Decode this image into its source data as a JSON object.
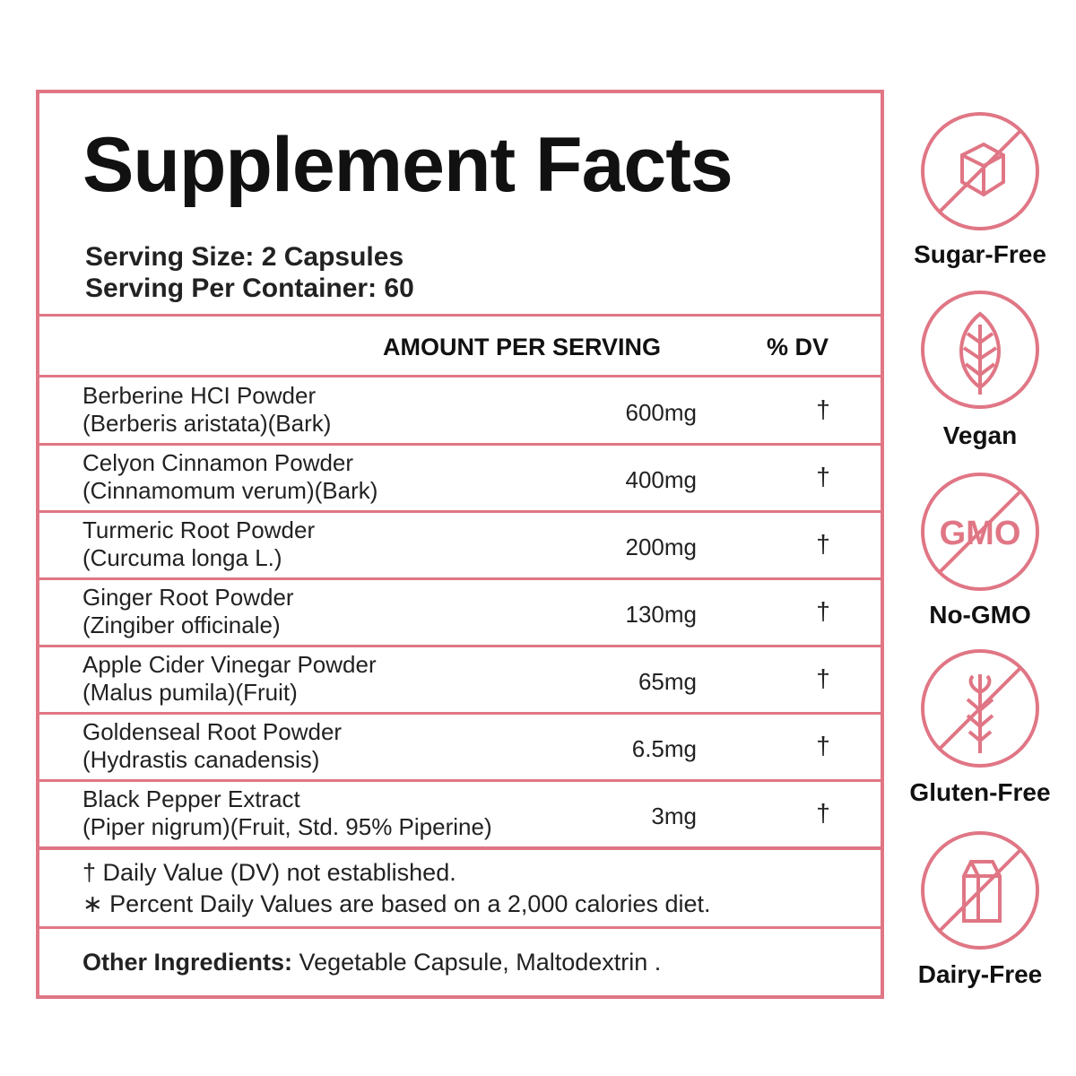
{
  "title": "Supplement Facts",
  "serving": [
    "Serving Size: 2 Capsules",
    "Serving Per Container: 60"
  ],
  "header": {
    "amount": "AMOUNT PER SERVING",
    "dv": "% DV"
  },
  "rows": [
    {
      "name": "Berberine HCI Powder",
      "source": "(Berberis aristata)(Bark)",
      "amount": "600mg",
      "dv": "†"
    },
    {
      "name": "Celyon Cinnamon Powder",
      "source": "(Cinnamomum verum)(Bark)",
      "amount": "400mg",
      "dv": "†"
    },
    {
      "name": "Turmeric Root Powder",
      "source": "(Curcuma longa L.)",
      "amount": "200mg",
      "dv": "†"
    },
    {
      "name": "Ginger Root Powder",
      "source": "(Zingiber officinale)",
      "amount": "130mg",
      "dv": "†"
    },
    {
      "name": "Apple Cider Vinegar Powder",
      "source": "(Malus pumila)(Fruit)",
      "amount": "65mg",
      "dv": "†"
    },
    {
      "name": "Goldenseal Root Powder",
      "source": "(Hydrastis canadensis)",
      "amount": "6.5mg",
      "dv": "†"
    },
    {
      "name": "Black Pepper Extract",
      "source": "(Piper nigrum)(Fruit, Std. 95% Piperine)",
      "amount": "3mg",
      "dv": "†"
    }
  ],
  "footnotes": [
    "† Daily Value (DV) not established.",
    "∗ Percent Daily Values are based on a 2,000 calories diet."
  ],
  "other": {
    "label": "Other Ingredients:",
    "text": "Vegetable Capsule, Maltodextrin ."
  },
  "badges": [
    {
      "label": "Sugar-Free"
    },
    {
      "label": "Vegan"
    },
    {
      "label": "No-GMO",
      "icon_text": "GMO"
    },
    {
      "label": "Gluten-Free"
    },
    {
      "label": "Dairy-Free"
    }
  ]
}
